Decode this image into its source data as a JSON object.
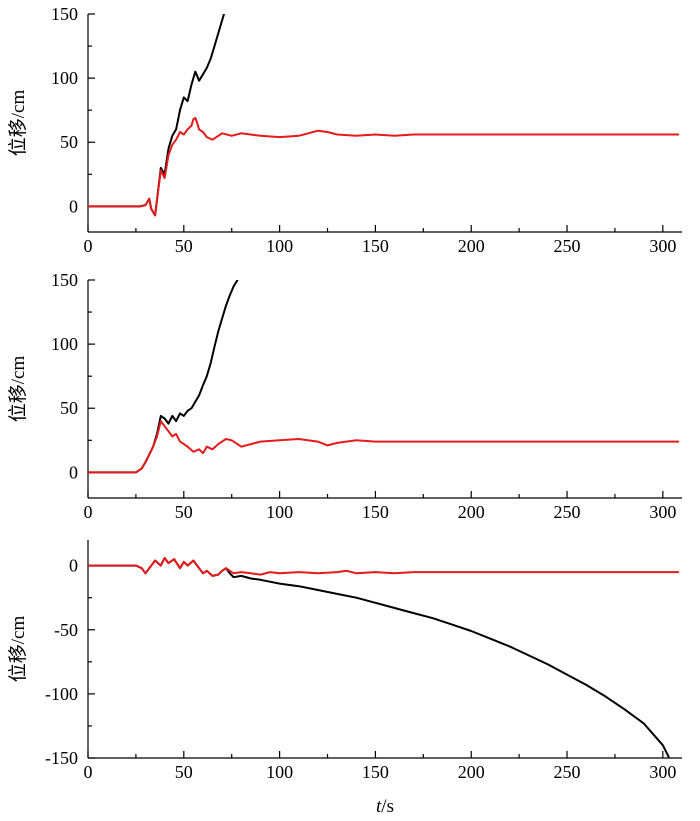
{
  "chart_data": [
    {
      "type": "line",
      "xlabel": "",
      "ylabel": "位移/cm",
      "xlim": [
        0,
        310
      ],
      "ylim": [
        -20,
        150
      ],
      "xticks": [
        0,
        50,
        100,
        150,
        200,
        250,
        300
      ],
      "yticks": [
        0,
        50,
        100,
        150
      ],
      "series": [
        {
          "color": "#000000",
          "x": [
            0,
            27,
            30,
            32,
            33,
            35,
            36,
            38,
            40,
            42,
            44,
            46,
            48,
            50,
            52,
            54,
            56,
            58,
            60,
            62,
            64,
            66,
            68,
            70,
            71
          ],
          "y": [
            0,
            0,
            1,
            6,
            -2,
            -7,
            5,
            30,
            25,
            45,
            55,
            60,
            75,
            85,
            82,
            95,
            105,
            98,
            103,
            108,
            115,
            125,
            135,
            145,
            150
          ]
        },
        {
          "color": "#e41a1c",
          "x": [
            0,
            27,
            30,
            32,
            33,
            35,
            36,
            38,
            40,
            42,
            44,
            46,
            48,
            50,
            52,
            54,
            55,
            56,
            57,
            58,
            60,
            62,
            65,
            70,
            75,
            80,
            90,
            100,
            110,
            115,
            120,
            125,
            130,
            140,
            150,
            160,
            170,
            200,
            250,
            300,
            308
          ],
          "y": [
            0,
            0,
            1,
            6,
            -2,
            -7,
            5,
            28,
            22,
            40,
            48,
            52,
            58,
            56,
            60,
            63,
            68,
            69,
            65,
            60,
            58,
            54,
            52,
            57,
            55,
            57,
            55,
            54,
            55,
            57,
            59,
            58,
            56,
            55,
            56,
            55,
            56,
            56,
            56,
            56,
            56
          ]
        }
      ]
    },
    {
      "type": "line",
      "xlabel": "",
      "ylabel": "位移/cm",
      "xlim": [
        0,
        310
      ],
      "ylim": [
        -20,
        150
      ],
      "xticks": [
        0,
        50,
        100,
        150,
        200,
        250,
        300
      ],
      "yticks": [
        0,
        50,
        100,
        150
      ],
      "series": [
        {
          "color": "#000000",
          "x": [
            0,
            25,
            28,
            30,
            32,
            34,
            36,
            38,
            40,
            42,
            44,
            46,
            48,
            50,
            52,
            54,
            56,
            58,
            60,
            62,
            64,
            66,
            68,
            70,
            72,
            74,
            76,
            78
          ],
          "y": [
            0,
            0,
            3,
            8,
            14,
            20,
            30,
            44,
            42,
            38,
            44,
            40,
            46,
            44,
            48,
            50,
            55,
            60,
            68,
            75,
            85,
            98,
            110,
            120,
            130,
            138,
            145,
            150
          ]
        },
        {
          "color": "#e41a1c",
          "x": [
            0,
            25,
            28,
            30,
            32,
            34,
            36,
            38,
            40,
            42,
            44,
            46,
            48,
            50,
            52,
            55,
            58,
            60,
            62,
            65,
            68,
            70,
            72,
            75,
            78,
            80,
            85,
            90,
            100,
            110,
            120,
            125,
            130,
            140,
            150,
            170,
            200,
            250,
            300,
            308
          ],
          "y": [
            0,
            0,
            3,
            8,
            14,
            20,
            28,
            40,
            36,
            32,
            28,
            30,
            24,
            22,
            20,
            16,
            18,
            15,
            20,
            18,
            22,
            24,
            26,
            25,
            22,
            20,
            22,
            24,
            25,
            26,
            24,
            21,
            23,
            25,
            24,
            24,
            24,
            24,
            24,
            24
          ]
        }
      ]
    },
    {
      "type": "line",
      "xlabel": "t/s",
      "ylabel": "位移/cm",
      "xlim": [
        0,
        310
      ],
      "ylim": [
        -150,
        20
      ],
      "xticks": [
        0,
        50,
        100,
        150,
        200,
        250,
        300
      ],
      "yticks": [
        0,
        -50,
        -100,
        -150
      ],
      "series": [
        {
          "color": "#000000",
          "x": [
            0,
            25,
            28,
            30,
            32,
            35,
            38,
            40,
            42,
            45,
            48,
            50,
            52,
            55,
            58,
            60,
            62,
            65,
            68,
            70,
            72,
            74,
            76,
            80,
            85,
            90,
            100,
            110,
            120,
            130,
            140,
            150,
            160,
            170,
            180,
            190,
            200,
            210,
            220,
            230,
            240,
            250,
            260,
            270,
            280,
            290,
            300,
            303
          ],
          "y": [
            0,
            0,
            -2,
            -6,
            -2,
            4,
            0,
            6,
            2,
            5,
            -2,
            3,
            0,
            4,
            -2,
            -6,
            -4,
            -8,
            -7,
            -4,
            -2,
            -6,
            -9,
            -8,
            -10,
            -11,
            -14,
            -16,
            -19,
            -22,
            -25,
            -29,
            -33,
            -37,
            -41,
            -46,
            -51,
            -57,
            -63,
            -70,
            -77,
            -85,
            -93,
            -102,
            -112,
            -123,
            -140,
            -149
          ]
        },
        {
          "color": "#e41a1c",
          "x": [
            0,
            25,
            28,
            30,
            32,
            35,
            38,
            40,
            42,
            45,
            48,
            50,
            52,
            55,
            58,
            60,
            62,
            65,
            68,
            70,
            72,
            74,
            76,
            80,
            85,
            90,
            95,
            100,
            110,
            120,
            130,
            135,
            140,
            150,
            160,
            170,
            180,
            200,
            250,
            300,
            308
          ],
          "y": [
            0,
            0,
            -2,
            -6,
            -2,
            4,
            0,
            6,
            2,
            5,
            -2,
            3,
            0,
            4,
            -2,
            -6,
            -4,
            -8,
            -7,
            -4,
            -2,
            -4,
            -6,
            -5,
            -6,
            -7,
            -5,
            -6,
            -5,
            -6,
            -5,
            -4,
            -6,
            -5,
            -6,
            -5,
            -5,
            -5,
            -5,
            -5,
            -5
          ]
        }
      ]
    }
  ]
}
